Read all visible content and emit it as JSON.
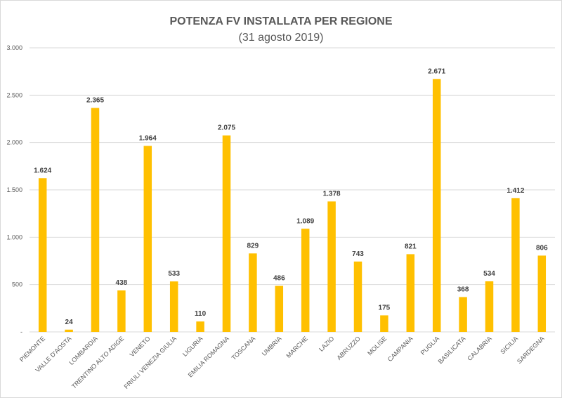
{
  "chart_data": {
    "type": "bar",
    "title": "POTENZA FV INSTALLATA PER REGIONE",
    "subtitle": "(31 agosto 2019)",
    "categories": [
      "PIEMONTE",
      "VALLE D'AOSTA",
      "LOMBARDIA",
      "TRENTINO ALTO ADIGE",
      "VENETO",
      "FRIULI VENEZIA GIULIA",
      "LIGURIA",
      "EMILIA ROMAGNA",
      "TOSCANA",
      "UMBRIA",
      "MARCHE",
      "LAZIO",
      "ABRUZZO",
      "MOLISE",
      "CAMPANIA",
      "PUGLIA",
      "BASILICATA",
      "CALABRIA",
      "SICILIA",
      "SARDEGNA"
    ],
    "values": [
      1624,
      24,
      2365,
      438,
      1964,
      533,
      110,
      2075,
      829,
      486,
      1089,
      1378,
      743,
      175,
      821,
      2671,
      368,
      534,
      1412,
      806
    ],
    "value_labels": [
      "1.624",
      "24",
      "2.365",
      "438",
      "1.964",
      "533",
      "110",
      "2.075",
      "829",
      "486",
      "1.089",
      "1.378",
      "743",
      "175",
      "821",
      "2.671",
      "368",
      "534",
      "1.412",
      "806"
    ],
    "y_ticks": [
      0,
      500,
      1000,
      1500,
      2000,
      2500,
      3000
    ],
    "y_tick_labels": [
      "-",
      "500",
      "1.000",
      "1.500",
      "2.000",
      "2.500",
      "3.000"
    ],
    "ylim": [
      0,
      3000
    ],
    "grid": true,
    "legend": "none",
    "xlabel": "",
    "ylabel": "",
    "colors": {
      "bar": "#FFC000",
      "grid": "#d9d9d9",
      "text": "#595959"
    }
  }
}
